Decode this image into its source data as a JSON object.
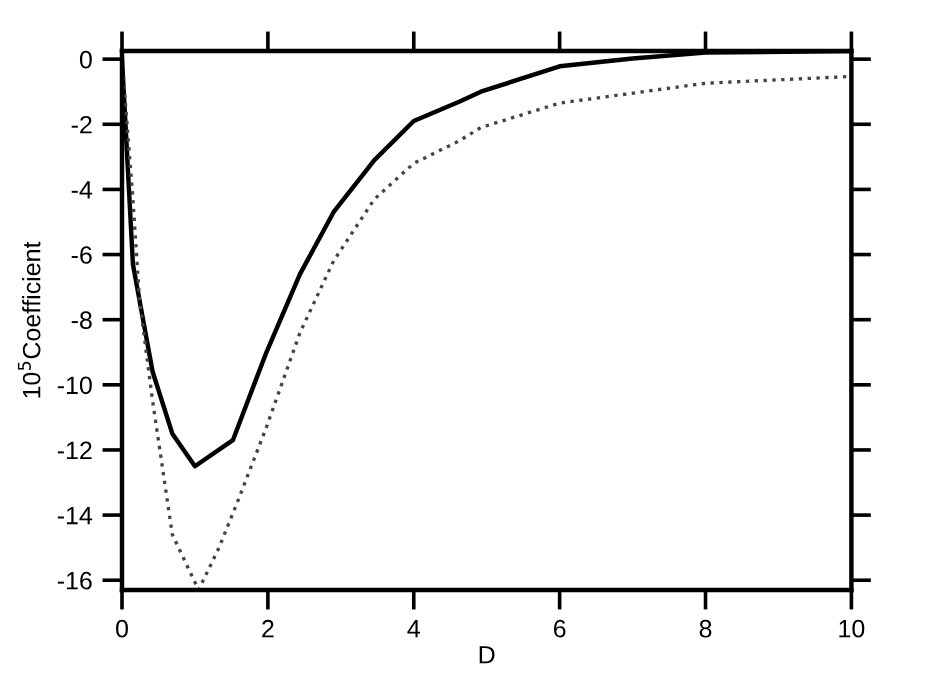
{
  "chart_data": {
    "type": "line",
    "xlabel": "D",
    "ylabel": "10$^{5}$Coefficient",
    "xlim": [
      0,
      10
    ],
    "ylim": [
      -16.3,
      0.25
    ],
    "xticks": [
      0,
      2,
      4,
      6,
      8,
      10
    ],
    "yticks": [
      0,
      -2,
      -4,
      -6,
      -8,
      -10,
      -12,
      -14,
      -16
    ],
    "grid": false,
    "legend": false,
    "series": [
      {
        "color": "#000000",
        "line_style": "solid",
        "x": [
          0,
          0.055,
          0.15,
          0.42,
          0.69,
          1.0,
          1.52,
          1.98,
          2.44,
          2.9,
          3.46,
          4.0,
          4.63,
          4.92,
          6.0,
          7.0,
          8.0,
          10.0
        ],
        "values": [
          0,
          -2.3,
          -6.3,
          -9.6,
          -11.5,
          -12.5,
          -11.7,
          -9.0,
          -6.6,
          -4.7,
          -3.1,
          -1.9,
          -1.3,
          -1.0,
          -0.22,
          0.02,
          0.2,
          0.25
        ]
      },
      {
        "color": "#444444",
        "line_style": "dotted",
        "x": [
          0,
          0.15,
          0.24,
          0.42,
          0.69,
          1.05,
          1.33,
          1.6,
          1.98,
          2.44,
          2.9,
          3.46,
          4.0,
          4.63,
          4.92,
          6.0,
          8.0,
          10.0
        ],
        "values": [
          0,
          -4.3,
          -7.4,
          -10.5,
          -14.6,
          -16.3,
          -15.0,
          -13.5,
          -11.3,
          -8.4,
          -6.2,
          -4.3,
          -3.2,
          -2.5,
          -2.1,
          -1.35,
          -0.74,
          -0.53
        ]
      }
    ]
  }
}
